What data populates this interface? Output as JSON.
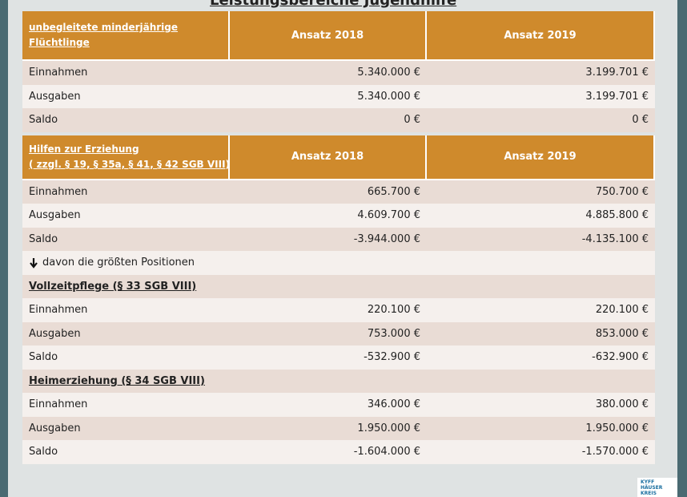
{
  "title": "Leistungsbereiche Jugendhilfe",
  "sections": [
    {
      "header": [
        "unbegleitete minderjährige",
        "Flüchtlinge"
      ],
      "columns": [
        "Ansatz 2018",
        "Ansatz 2019"
      ],
      "rows": [
        {
          "label": "Einnahmen",
          "values": [
            "5.340.000 €",
            "3.199.701 €"
          ]
        },
        {
          "label": "Ausgaben",
          "values": [
            "5.340.000 €",
            "3.199.701 €"
          ]
        },
        {
          "label": "Saldo",
          "values": [
            "0 €",
            "0 €"
          ]
        }
      ]
    },
    {
      "header": [
        "Hilfen zur Erziehung",
        "( zzgl. § 19, § 35a, § 41, § 42 SGB VIII)"
      ],
      "columns": [
        "Ansatz 2018",
        "Ansatz 2019"
      ],
      "rows": [
        {
          "label": "Einnahmen",
          "values": [
            "665.700 €",
            "750.700 €"
          ]
        },
        {
          "label": "Ausgaben",
          "values": [
            "4.609.700 €",
            "4.885.800 €"
          ]
        },
        {
          "label": "Saldo",
          "values": [
            "-3.944.000 €",
            "-4.135.100 €"
          ]
        },
        {
          "note": "davon die größten Positionen"
        },
        {
          "heading": "Vollzeitpflege (§ 33 SGB VIII)"
        },
        {
          "label": "Einnahmen",
          "values": [
            "220.100 €",
            "220.100 €"
          ]
        },
        {
          "label": "Ausgaben",
          "values": [
            "753.000 €",
            "853.000 €"
          ]
        },
        {
          "label": "Saldo",
          "values": [
            "-532.900 €",
            "-632.900 €"
          ]
        },
        {
          "heading": "Heimerziehung (§ 34 SGB VIII)"
        },
        {
          "label": "Einnahmen",
          "values": [
            "346.000 €",
            "380.000 €"
          ]
        },
        {
          "label": "Ausgaben",
          "values": [
            "1.950.000 €",
            "1.950.000 €"
          ]
        },
        {
          "label": "Saldo",
          "values": [
            "-1.604.000 €",
            "-1.570.000 €"
          ]
        }
      ]
    }
  ],
  "logo": [
    "KYFF",
    "HÄUSER",
    "KREIS"
  ]
}
